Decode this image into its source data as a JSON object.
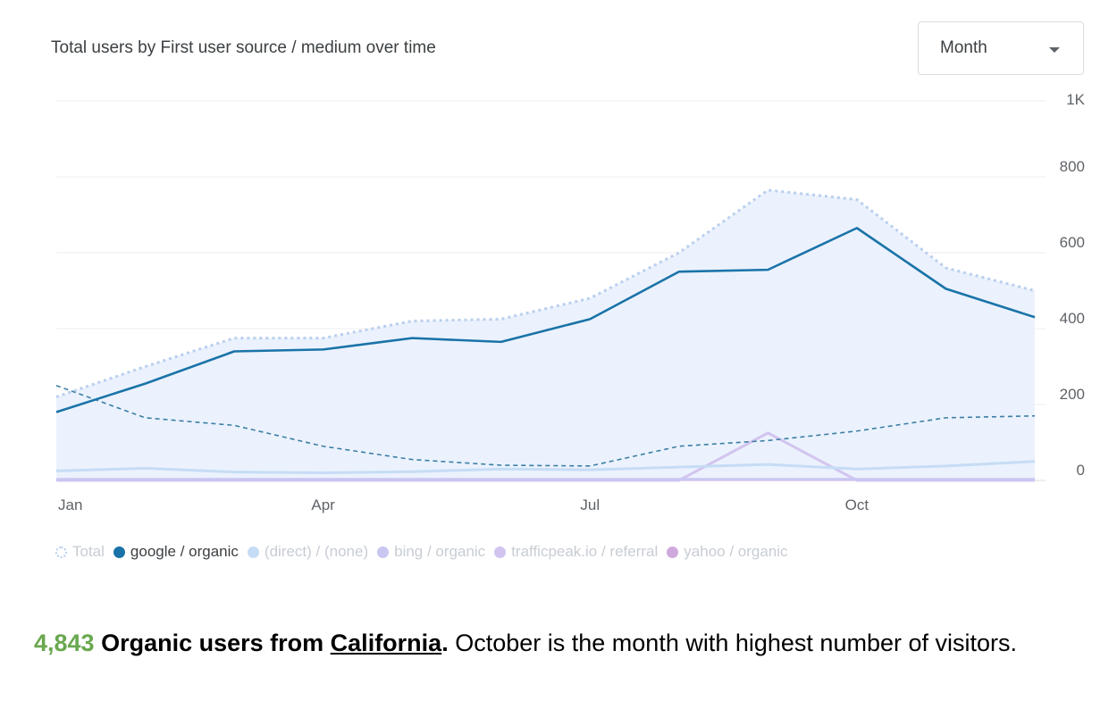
{
  "chart_title": "Total users by First user source / medium over time",
  "period_select": {
    "value": "Month"
  },
  "chart_data": {
    "type": "line",
    "title": "Total users by First user source / medium over time",
    "x": [
      "Jan",
      "Feb",
      "Mar",
      "Apr",
      "May",
      "Jun",
      "Jul",
      "Aug",
      "Sep",
      "Oct",
      "Nov",
      "Dec"
    ],
    "x_tick_labels": [
      "Jan",
      "",
      "",
      "Apr",
      "",
      "",
      "Jul",
      "",
      "",
      "Oct",
      "",
      ""
    ],
    "y_ticks": [
      0,
      200,
      400,
      600,
      800,
      1000
    ],
    "y_tick_labels": [
      "0",
      "200",
      "400",
      "600",
      "800",
      "1K"
    ],
    "ylim": [
      0,
      1000
    ],
    "y_axis_position": "right",
    "grid": true,
    "legend_position": "bottom-left",
    "series": [
      {
        "name": "Total",
        "style": "dotted-area",
        "color": "#b9cfee",
        "values": [
          220,
          300,
          375,
          375,
          420,
          425,
          480,
          600,
          765,
          740,
          560,
          500
        ]
      },
      {
        "name": "google / organic",
        "style": "solid",
        "color": "#1a73a8",
        "values": [
          180,
          255,
          340,
          345,
          375,
          365,
          425,
          550,
          555,
          665,
          505,
          430
        ]
      },
      {
        "name": "(direct) / (none)",
        "style": "solid",
        "color": "#c6dcf5",
        "values": [
          25,
          32,
          22,
          20,
          23,
          30,
          28,
          35,
          42,
          30,
          38,
          50
        ]
      },
      {
        "name": "bing / organic",
        "style": "solid",
        "color": "#c9c6f2",
        "values": [
          3,
          3,
          3,
          3,
          3,
          3,
          3,
          3,
          3,
          3,
          3,
          3
        ]
      },
      {
        "name": "trafficpeak.io / referral",
        "style": "solid",
        "color": "#d2c4f0",
        "values": [
          0,
          0,
          0,
          0,
          0,
          0,
          0,
          0,
          125,
          0,
          0,
          0
        ]
      },
      {
        "name": "yahoo / organic",
        "style": "solid",
        "color": "#cfa9dd",
        "values": [
          2,
          2,
          2,
          2,
          2,
          2,
          2,
          2,
          2,
          2,
          2,
          2
        ]
      }
    ],
    "comparison_series": {
      "style": "dashed",
      "color": "#3c7ea5",
      "values": [
        250,
        165,
        145,
        90,
        55,
        40,
        38,
        90,
        105,
        130,
        165,
        170
      ]
    }
  },
  "legend": [
    {
      "label": "Total",
      "color": "#b9cfee",
      "active": false,
      "marker": "dotted"
    },
    {
      "label": "google / organic",
      "color": "#1a73a8",
      "active": true,
      "marker": "solid"
    },
    {
      "label": "(direct) / (none)",
      "color": "#c6dcf5",
      "active": false,
      "marker": "solid"
    },
    {
      "label": "bing / organic",
      "color": "#c9c6f2",
      "active": false,
      "marker": "solid"
    },
    {
      "label": "trafficpeak.io / referral",
      "color": "#d2c4f0",
      "active": false,
      "marker": "solid"
    },
    {
      "label": "yahoo / organic",
      "color": "#cfa9dd",
      "active": false,
      "marker": "solid"
    }
  ],
  "summary": {
    "count": "4,843",
    "bold_text": " Organic users from ",
    "place": "California",
    "period": ".",
    "rest": " October is the month with highest number of visitors."
  }
}
